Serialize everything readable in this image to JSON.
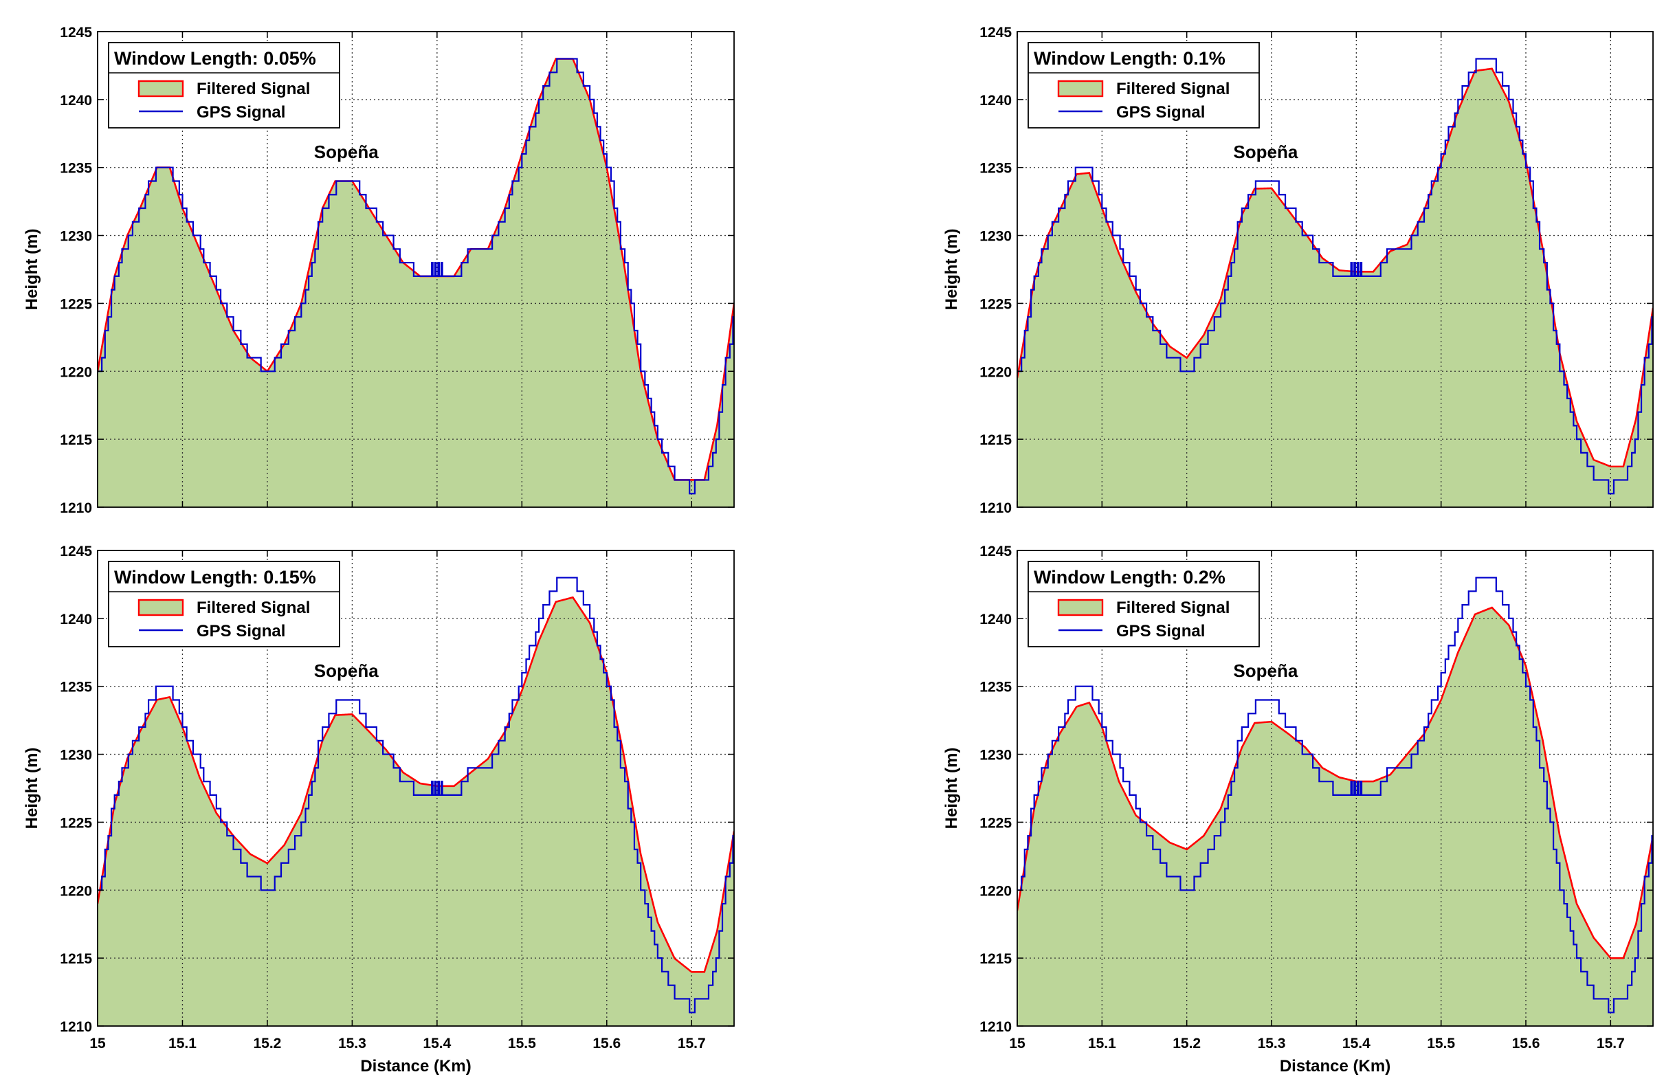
{
  "colors": {
    "fill": "#bcd699",
    "filtered": "#ff0000",
    "gps": "#0000cc",
    "grid": "#333333",
    "frame": "#000000"
  },
  "chart_data": [
    {
      "type": "area",
      "legend_title": "Window Length: 0.05%",
      "legend_placement": "top-left",
      "annotation": "Sopeña",
      "xlabel": "",
      "ylabel": "Height (m)",
      "xlim": [
        15,
        15.75
      ],
      "ylim": [
        1210,
        1245
      ],
      "x_ticks": [
        "",
        "",
        "",
        "",
        "",
        "",
        "",
        ""
      ],
      "y_ticks": [
        "1210",
        "1215",
        "1220",
        "1225",
        "1230",
        "1235",
        "1240",
        "1245"
      ],
      "grid": true,
      "smoothing": 0.0,
      "series": [
        {
          "name": "Filtered Signal",
          "style": "filled-area-red-outline"
        },
        {
          "name": "GPS Signal",
          "style": "blue-stepped-line"
        }
      ]
    },
    {
      "type": "area",
      "legend_title": "Window Length: 0.1%",
      "legend_placement": "top-left",
      "annotation": "Sopeña",
      "xlabel": "",
      "ylabel": "Height (m)",
      "xlim": [
        15,
        15.75
      ],
      "ylim": [
        1210,
        1245
      ],
      "x_ticks": [
        "",
        "",
        "",
        "",
        "",
        "",
        "",
        ""
      ],
      "y_ticks": [
        "1210",
        "1215",
        "1220",
        "1225",
        "1230",
        "1235",
        "1240",
        "1245"
      ],
      "grid": true,
      "smoothing": 0.33,
      "series": [
        {
          "name": "Filtered Signal",
          "style": "filled-area-red-outline"
        },
        {
          "name": "GPS Signal",
          "style": "blue-stepped-line"
        }
      ]
    },
    {
      "type": "area",
      "legend_title": "Window Length: 0.15%",
      "legend_placement": "top-left",
      "annotation": "Sopeña",
      "xlabel": "Distance (Km)",
      "ylabel": "Height (m)",
      "xlim": [
        15,
        15.75
      ],
      "ylim": [
        1210,
        1245
      ],
      "x_ticks": [
        "15",
        "15.1",
        "15.2",
        "15.3",
        "15.4",
        "15.5",
        "15.6",
        "15.7"
      ],
      "y_ticks": [
        "1210",
        "1215",
        "1220",
        "1225",
        "1230",
        "1235",
        "1240",
        "1245"
      ],
      "grid": true,
      "smoothing": 0.66,
      "series": [
        {
          "name": "Filtered Signal",
          "style": "filled-area-red-outline"
        },
        {
          "name": "GPS Signal",
          "style": "blue-stepped-line"
        }
      ]
    },
    {
      "type": "area",
      "legend_title": "Window Length: 0.2%",
      "legend_placement": "top-left",
      "annotation": "Sopeña",
      "xlabel": "Distance (Km)",
      "ylabel": "Height (m)",
      "xlim": [
        15,
        15.75
      ],
      "ylim": [
        1210,
        1245
      ],
      "x_ticks": [
        "15",
        "15.1",
        "15.2",
        "15.3",
        "15.4",
        "15.5",
        "15.6",
        "15.7"
      ],
      "y_ticks": [
        "1210",
        "1215",
        "1220",
        "1225",
        "1230",
        "1235",
        "1240",
        "1245"
      ],
      "grid": true,
      "smoothing": 1.0,
      "series": [
        {
          "name": "Filtered Signal",
          "style": "filled-area-red-outline"
        },
        {
          "name": "GPS Signal",
          "style": "blue-stepped-line"
        }
      ]
    }
  ],
  "gps_profile": {
    "x": [
      15.0,
      15.02,
      15.035,
      15.05,
      15.07,
      15.085,
      15.1,
      15.12,
      15.14,
      15.16,
      15.18,
      15.2,
      15.22,
      15.24,
      15.265,
      15.28,
      15.3,
      15.32,
      15.34,
      15.36,
      15.38,
      15.4,
      15.42,
      15.44,
      15.46,
      15.48,
      15.5,
      15.52,
      15.54,
      15.56,
      15.58,
      15.6,
      15.62,
      15.64,
      15.66,
      15.68,
      15.7,
      15.715,
      15.73,
      15.75
    ],
    "y": [
      1220,
      1227,
      1230,
      1232,
      1235,
      1235,
      1232,
      1229,
      1226,
      1223,
      1221,
      1220,
      1222,
      1225,
      1232,
      1234,
      1234,
      1232,
      1230,
      1228,
      1227,
      1227,
      1227,
      1229,
      1229,
      1232,
      1236,
      1240,
      1243,
      1243,
      1240,
      1235,
      1228,
      1220,
      1215,
      1212,
      1212,
      1212,
      1216,
      1225
    ]
  },
  "filtered_smooth_profile": {
    "x": [
      15.0,
      15.02,
      15.035,
      15.05,
      15.07,
      15.085,
      15.1,
      15.12,
      15.14,
      15.16,
      15.18,
      15.2,
      15.22,
      15.24,
      15.265,
      15.28,
      15.3,
      15.32,
      15.34,
      15.36,
      15.38,
      15.4,
      15.42,
      15.44,
      15.46,
      15.48,
      15.5,
      15.52,
      15.54,
      15.56,
      15.58,
      15.6,
      15.62,
      15.64,
      15.66,
      15.68,
      15.7,
      15.715,
      15.73,
      15.75
    ],
    "y": [
      1218.5,
      1226,
      1229.5,
      1231.5,
      1233.5,
      1233.8,
      1232,
      1228,
      1225.5,
      1224.5,
      1223.5,
      1223,
      1224,
      1226,
      1230.5,
      1232.3,
      1232.4,
      1231.5,
      1230.5,
      1229,
      1228.3,
      1228,
      1228,
      1228.5,
      1230,
      1231.5,
      1234,
      1237.5,
      1240.3,
      1240.8,
      1239.5,
      1236.5,
      1231,
      1224,
      1219,
      1216.5,
      1215,
      1215,
      1217.5,
      1224
    ]
  }
}
